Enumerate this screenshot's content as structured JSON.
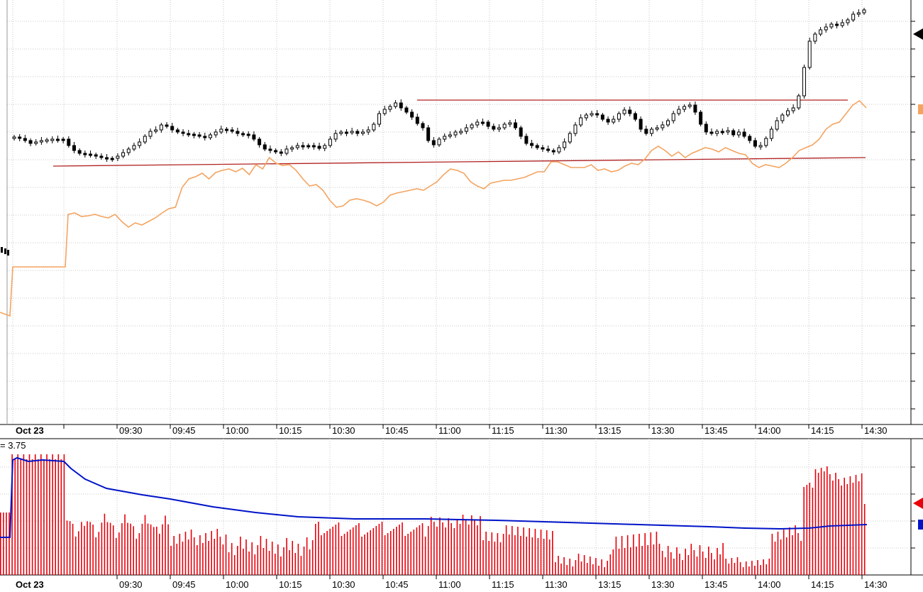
{
  "chart_data": [
    {
      "type": "candlestick",
      "panel": "price",
      "title": "",
      "xlabel": "",
      "ylabel": "",
      "x_date_label": "Oct 23",
      "x_ticks": [
        "09:30",
        "09:45",
        "10:00",
        "10:15",
        "10:30",
        "10:45",
        "11:00",
        "11:15",
        "11:30",
        "13:15",
        "13:30",
        "13:45",
        "14:00",
        "14:15",
        "14:30"
      ],
      "grid": true,
      "candle_close_path": [
        [
          0,
          193
        ],
        [
          1,
          195
        ],
        [
          2,
          198
        ],
        [
          3,
          202
        ],
        [
          4,
          200
        ],
        [
          5,
          198
        ],
        [
          6,
          197
        ],
        [
          7,
          196
        ],
        [
          8,
          196
        ],
        [
          9,
          196
        ],
        [
          10,
          205
        ],
        [
          11,
          212
        ],
        [
          12,
          216
        ],
        [
          13,
          217
        ],
        [
          14,
          218
        ],
        [
          15,
          220
        ],
        [
          16,
          222
        ],
        [
          17,
          223
        ],
        [
          18,
          223
        ],
        [
          19,
          220
        ],
        [
          20,
          215
        ],
        [
          21,
          210
        ],
        [
          22,
          205
        ],
        [
          23,
          200
        ],
        [
          24,
          192
        ],
        [
          25,
          185
        ],
        [
          26,
          183
        ],
        [
          27,
          176
        ],
        [
          28,
          178
        ],
        [
          29,
          183
        ],
        [
          30,
          186
        ],
        [
          31,
          188
        ],
        [
          32,
          189
        ],
        [
          33,
          190
        ],
        [
          34,
          192
        ],
        [
          35,
          194
        ],
        [
          36,
          190
        ],
        [
          37,
          186
        ],
        [
          38,
          182
        ],
        [
          39,
          183
        ],
        [
          40,
          185
        ],
        [
          41,
          188
        ],
        [
          42,
          189
        ],
        [
          43,
          190
        ],
        [
          44,
          196
        ],
        [
          45,
          204
        ],
        [
          46,
          210
        ],
        [
          47,
          212
        ],
        [
          48,
          214
        ],
        [
          49,
          216
        ],
        [
          50,
          210
        ],
        [
          51,
          208
        ],
        [
          52,
          205
        ],
        [
          53,
          205
        ],
        [
          54,
          205
        ],
        [
          55,
          206
        ],
        [
          56,
          209
        ],
        [
          57,
          205
        ],
        [
          58,
          196
        ],
        [
          59,
          188
        ],
        [
          60,
          186
        ],
        [
          61,
          186
        ],
        [
          62,
          185
        ],
        [
          63,
          188
        ],
        [
          64,
          186
        ],
        [
          65,
          183
        ],
        [
          66,
          175
        ],
        [
          67,
          160
        ],
        [
          68,
          154
        ],
        [
          69,
          150
        ],
        [
          70,
          145
        ],
        [
          71,
          152
        ],
        [
          72,
          158
        ],
        [
          73,
          165
        ],
        [
          74,
          174
        ],
        [
          75,
          180
        ],
        [
          76,
          198
        ],
        [
          77,
          204
        ],
        [
          78,
          196
        ],
        [
          79,
          192
        ],
        [
          80,
          190
        ],
        [
          81,
          186
        ],
        [
          82,
          185
        ],
        [
          83,
          180
        ],
        [
          84,
          176
        ],
        [
          85,
          172
        ],
        [
          86,
          172
        ],
        [
          87,
          178
        ],
        [
          88,
          182
        ],
        [
          89,
          180
        ],
        [
          90,
          175
        ],
        [
          91,
          173
        ],
        [
          92,
          180
        ],
        [
          93,
          192
        ],
        [
          94,
          202
        ],
        [
          95,
          205
        ],
        [
          96,
          208
        ],
        [
          97,
          210
        ],
        [
          98,
          212
        ],
        [
          99,
          214
        ],
        [
          100,
          208
        ],
        [
          101,
          200
        ],
        [
          102,
          188
        ],
        [
          103,
          176
        ],
        [
          104,
          166
        ],
        [
          105,
          162
        ],
        [
          106,
          160
        ],
        [
          107,
          162
        ],
        [
          108,
          168
        ],
        [
          109,
          172
        ],
        [
          110,
          168
        ],
        [
          111,
          160
        ],
        [
          112,
          155
        ],
        [
          113,
          160
        ],
        [
          114,
          168
        ],
        [
          115,
          182
        ],
        [
          116,
          188
        ],
        [
          117,
          182
        ],
        [
          118,
          180
        ],
        [
          119,
          176
        ],
        [
          120,
          170
        ],
        [
          121,
          160
        ],
        [
          122,
          154
        ],
        [
          123,
          150
        ],
        [
          124,
          148
        ],
        [
          125,
          158
        ],
        [
          126,
          175
        ],
        [
          127,
          186
        ],
        [
          128,
          188
        ],
        [
          129,
          185
        ],
        [
          130,
          186
        ],
        [
          131,
          184
        ],
        [
          132,
          190
        ],
        [
          133,
          186
        ],
        [
          134,
          192
        ],
        [
          135,
          198
        ],
        [
          136,
          206
        ],
        [
          137,
          205
        ],
        [
          138,
          195
        ],
        [
          139,
          182
        ],
        [
          140,
          170
        ],
        [
          141,
          162
        ],
        [
          142,
          156
        ],
        [
          143,
          152
        ],
        [
          144,
          135
        ],
        [
          145,
          95
        ],
        [
          146,
          58
        ],
        [
          147,
          48
        ],
        [
          148,
          42
        ],
        [
          149,
          38
        ],
        [
          150,
          34
        ],
        [
          151,
          36
        ],
        [
          152,
          32
        ],
        [
          153,
          28
        ],
        [
          154,
          20
        ],
        [
          155,
          18
        ],
        [
          156,
          14
        ]
      ],
      "horizontal_lines": [
        {
          "name": "resistance",
          "y": 141
        },
        {
          "name": "support",
          "y_start": 234,
          "y_end": 222
        }
      ],
      "overlay_line": {
        "color": "#f4a460",
        "path": [
          [
            0,
            440
          ],
          [
            1,
            445
          ],
          [
            2,
            376
          ],
          [
            3,
            376
          ],
          [
            4,
            376
          ],
          [
            5,
            376
          ],
          [
            6,
            376
          ],
          [
            7,
            376
          ],
          [
            8,
            376
          ],
          [
            9,
            376
          ],
          [
            10,
            302
          ],
          [
            11,
            300
          ],
          [
            12,
            305
          ],
          [
            13,
            304
          ],
          [
            14,
            302
          ],
          [
            15,
            305
          ],
          [
            16,
            307
          ],
          [
            17,
            302
          ],
          [
            18,
            312
          ],
          [
            19,
            320
          ],
          [
            20,
            314
          ],
          [
            21,
            317
          ],
          [
            22,
            312
          ],
          [
            23,
            307
          ],
          [
            24,
            300
          ],
          [
            25,
            294
          ],
          [
            26,
            292
          ],
          [
            27,
            264
          ],
          [
            28,
            252
          ],
          [
            29,
            249
          ],
          [
            30,
            244
          ],
          [
            31,
            252
          ],
          [
            32,
            243
          ],
          [
            33,
            240
          ],
          [
            34,
            238
          ],
          [
            35,
            242
          ],
          [
            36,
            237
          ],
          [
            37,
            246
          ],
          [
            38,
            232
          ],
          [
            39,
            238
          ],
          [
            40,
            222
          ],
          [
            41,
            230
          ],
          [
            42,
            233
          ],
          [
            43,
            232
          ],
          [
            44,
            240
          ],
          [
            45,
            252
          ],
          [
            46,
            262
          ],
          [
            47,
            260
          ],
          [
            48,
            268
          ],
          [
            49,
            282
          ],
          [
            50,
            292
          ],
          [
            51,
            290
          ],
          [
            52,
            282
          ],
          [
            53,
            280
          ],
          [
            54,
            282
          ],
          [
            55,
            285
          ],
          [
            56,
            290
          ],
          [
            57,
            285
          ],
          [
            58,
            275
          ],
          [
            59,
            272
          ],
          [
            60,
            270
          ],
          [
            61,
            268
          ],
          [
            62,
            266
          ],
          [
            63,
            268
          ],
          [
            64,
            262
          ],
          [
            65,
            256
          ],
          [
            66,
            246
          ],
          [
            67,
            238
          ],
          [
            68,
            240
          ],
          [
            69,
            244
          ],
          [
            70,
            256
          ],
          [
            71,
            262
          ],
          [
            72,
            266
          ],
          [
            73,
            258
          ],
          [
            74,
            256
          ],
          [
            75,
            254
          ],
          [
            76,
            254
          ],
          [
            77,
            252
          ],
          [
            78,
            250
          ],
          [
            79,
            246
          ],
          [
            80,
            242
          ],
          [
            81,
            242
          ],
          [
            82,
            228
          ],
          [
            83,
            228
          ],
          [
            84,
            232
          ],
          [
            85,
            236
          ],
          [
            86,
            236
          ],
          [
            87,
            236
          ],
          [
            88,
            232
          ],
          [
            89,
            240
          ],
          [
            90,
            238
          ],
          [
            91,
            242
          ],
          [
            92,
            240
          ],
          [
            93,
            234
          ],
          [
            94,
            230
          ],
          [
            95,
            232
          ],
          [
            96,
            224
          ],
          [
            97,
            212
          ],
          [
            98,
            206
          ],
          [
            99,
            212
          ],
          [
            100,
            220
          ],
          [
            101,
            214
          ],
          [
            102,
            222
          ],
          [
            103,
            216
          ],
          [
            104,
            212
          ],
          [
            105,
            208
          ],
          [
            106,
            210
          ],
          [
            107,
            214
          ],
          [
            108,
            208
          ],
          [
            109,
            212
          ],
          [
            110,
            216
          ],
          [
            111,
            218
          ],
          [
            112,
            230
          ],
          [
            113,
            236
          ],
          [
            114,
            232
          ],
          [
            115,
            234
          ],
          [
            116,
            236
          ],
          [
            117,
            230
          ],
          [
            118,
            222
          ],
          [
            119,
            212
          ],
          [
            120,
            208
          ],
          [
            121,
            204
          ],
          [
            122,
            196
          ],
          [
            123,
            182
          ],
          [
            124,
            175
          ],
          [
            125,
            172
          ],
          [
            126,
            160
          ],
          [
            127,
            148
          ],
          [
            128,
            142
          ],
          [
            129,
            152
          ]
        ]
      }
    },
    {
      "type": "bar",
      "panel": "volume",
      "title_fragment": "= 3.75",
      "x_date_label": "Oct 23",
      "x_ticks": [
        "09:30",
        "09:45",
        "10:00",
        "10:15",
        "10:30",
        "10:45",
        "11:00",
        "11:15",
        "11:30",
        "13:15",
        "13:30",
        "13:45",
        "14:00",
        "14:15",
        "14:30"
      ],
      "bar_color": "#e8000b",
      "line_color": "#0014c8",
      "grid": true
    }
  ],
  "colors": {
    "background": "#ffffff",
    "grid": "#c8c8c8",
    "candle": "#000000",
    "level_line": "#b22222",
    "overlay": "#f4a460",
    "volume_bar": "#e8000b",
    "volume_avg": "#0014c8"
  },
  "markers": {
    "price_arrow_icon": "left-arrow",
    "overlay_marker_icon": "small-square",
    "volume_arrow_icon": "left-arrow",
    "volume_avg_marker_icon": "small-square"
  }
}
